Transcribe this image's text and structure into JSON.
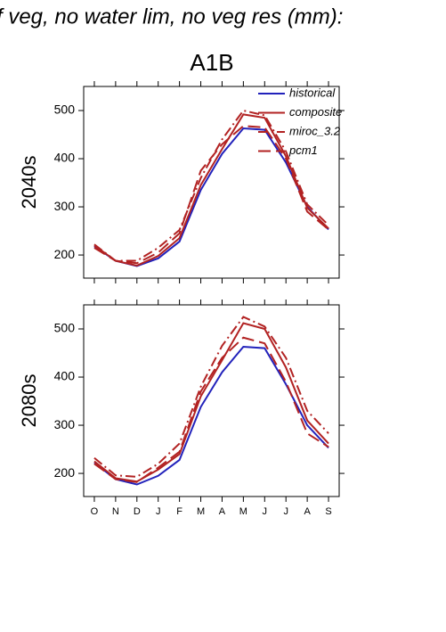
{
  "chart_data": {
    "type": "line",
    "title": "f veg, no water lim, no veg res (mm):",
    "subtitle": "A1B",
    "categories": [
      "O",
      "N",
      "D",
      "J",
      "F",
      "M",
      "A",
      "M",
      "J",
      "J",
      "A",
      "S"
    ],
    "legend": "upper right",
    "series": [
      {
        "name": "historical",
        "color": "#2222bb",
        "linestyle": "solid"
      },
      {
        "name": "composite",
        "color": "#b22222",
        "linestyle": "solid"
      },
      {
        "name": "miroc_3.2",
        "color": "#b22222",
        "linestyle": "dashdot"
      },
      {
        "name": "pcm1",
        "color": "#b22222",
        "linestyle": "dashed"
      }
    ],
    "panels": [
      {
        "ylabel": "2040s",
        "ylim": [
          152,
          550
        ],
        "yticks": [
          200,
          300,
          400,
          500
        ],
        "values": [
          [
            218,
            188,
            177,
            193,
            228,
            335,
            410,
            463,
            460,
            392,
            300,
            253
          ],
          [
            220,
            188,
            178,
            198,
            235,
            345,
            420,
            492,
            485,
            405,
            298,
            255
          ],
          [
            222,
            188,
            188,
            215,
            252,
            360,
            440,
            500,
            490,
            415,
            305,
            262
          ],
          [
            215,
            188,
            183,
            205,
            245,
            375,
            430,
            468,
            465,
            400,
            290,
            253
          ]
        ]
      },
      {
        "ylabel": "2080s",
        "ylim": [
          152,
          550
        ],
        "yticks": [
          200,
          300,
          400,
          500
        ],
        "values": [
          [
            222,
            188,
            177,
            195,
            228,
            338,
            410,
            463,
            460,
            385,
            300,
            253
          ],
          [
            225,
            190,
            183,
            208,
            240,
            360,
            435,
            512,
            500,
            420,
            310,
            262
          ],
          [
            232,
            196,
            193,
            220,
            262,
            380,
            465,
            525,
            505,
            440,
            330,
            283
          ],
          [
            220,
            188,
            182,
            212,
            245,
            370,
            440,
            482,
            470,
            390,
            283,
            255
          ]
        ]
      }
    ]
  }
}
